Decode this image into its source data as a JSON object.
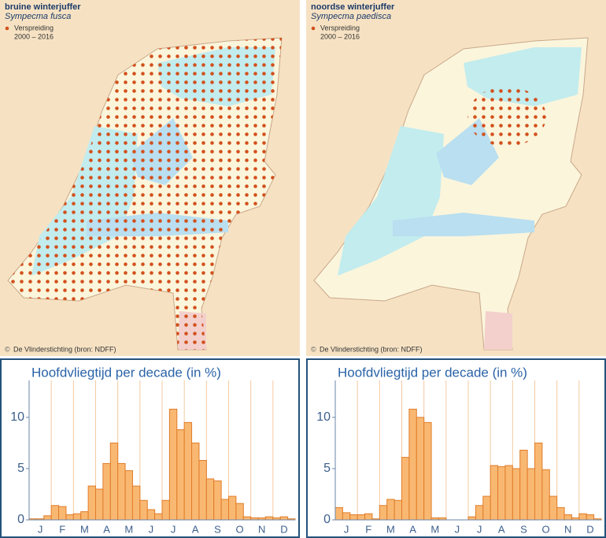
{
  "maps": [
    {
      "title": "bruine winterjuffer",
      "species": "Sympecma fusca",
      "legend_label": "Verspreiding",
      "legend_period": "2000 – 2016",
      "credit": "De Vlinderstichting (bron: NDFF)"
    },
    {
      "title": "noordse winterjuffer",
      "species": "Sympecma paedisca",
      "legend_label": "Verspreiding",
      "legend_period": "2000 – 2016",
      "credit": "De Vlinderstichting (bron: NDFF)"
    }
  ],
  "chart_data": [
    {
      "type": "bar",
      "title": "Hoofdvliegtijd per decade (in %)",
      "color": "#f9b872",
      "categories": [
        null,
        "J",
        null,
        null,
        "F",
        null,
        null,
        "M",
        null,
        null,
        "A",
        null,
        null,
        "M",
        null,
        null,
        "J",
        null,
        null,
        "J",
        null,
        null,
        "A",
        null,
        null,
        "S",
        null,
        null,
        "O",
        null,
        null,
        "N",
        null,
        null,
        "D",
        null
      ],
      "values": [
        0.1,
        0.1,
        0.4,
        1.4,
        1.3,
        0.5,
        0.6,
        0.8,
        3.3,
        3.0,
        5.5,
        7.5,
        5.5,
        4.8,
        3.3,
        1.9,
        1.0,
        0.6,
        1.9,
        10.8,
        8.8,
        9.5,
        7.5,
        5.8,
        4.0,
        3.8,
        2.0,
        2.3,
        1.6,
        0.3,
        0.2,
        0.2,
        0.3,
        0.2,
        0.3,
        0.1
      ],
      "ylim": [
        0,
        13.6
      ],
      "yticks": [
        0,
        5,
        10
      ]
    },
    {
      "type": "bar",
      "title": "Hoofdvliegtijd per decade (in %)",
      "color": "#f9b872",
      "categories": [
        null,
        "J",
        null,
        null,
        "F",
        null,
        null,
        "M",
        null,
        null,
        "A",
        null,
        null,
        "M",
        null,
        null,
        "J",
        null,
        null,
        "J",
        null,
        null,
        "A",
        null,
        null,
        "S",
        null,
        null,
        "O",
        null,
        null,
        "N",
        null,
        null,
        "D",
        null
      ],
      "values": [
        1.2,
        0.7,
        0.5,
        0.5,
        0.6,
        0.1,
        1.4,
        2.0,
        1.9,
        6.1,
        10.8,
        10.0,
        9.5,
        0.2,
        0.2,
        0,
        0,
        0,
        0.3,
        1.4,
        2.3,
        5.3,
        5.2,
        5.3,
        5.0,
        6.8,
        5.0,
        7.5,
        4.9,
        2.3,
        1.2,
        0.5,
        0.2,
        0.6,
        0.5,
        0.1
      ],
      "ylim": [
        0,
        13.6
      ],
      "yticks": [
        0,
        5,
        10
      ]
    }
  ]
}
